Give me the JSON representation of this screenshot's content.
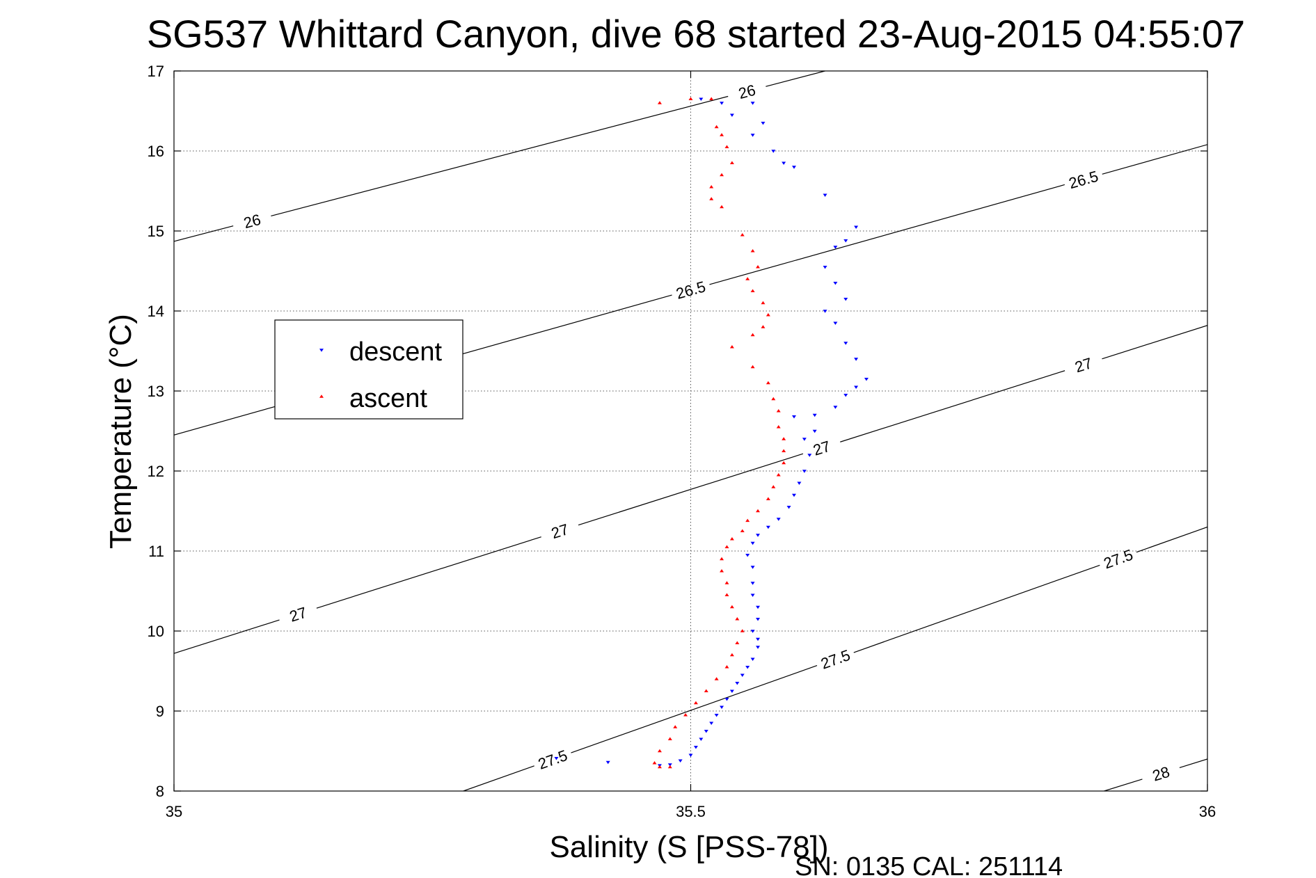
{
  "chart_data": {
    "type": "scatter",
    "title": "SG537 Whittard Canyon, dive 68 started 23-Aug-2015 04:55:07",
    "xlabel": "Salinity (S [PSS-78])",
    "ylabel": "Temperature (°C)",
    "footer": "SN: 0135  CAL: 251114",
    "xlim": [
      35,
      36
    ],
    "ylim": [
      8,
      17
    ],
    "x_ticks": [
      "35",
      "35.5",
      "36"
    ],
    "y_ticks": [
      "8",
      "9",
      "10",
      "11",
      "12",
      "13",
      "14",
      "15",
      "16",
      "17"
    ],
    "grid": true,
    "legend_position": "middle-left",
    "legend": [
      {
        "label": "descent",
        "color": "#0000ff",
        "marker": "triangle-down"
      },
      {
        "label": "ascent",
        "color": "#ff0000",
        "marker": "triangle-up"
      }
    ],
    "density_contours": [
      {
        "level": 26,
        "labels": [
          "26",
          "26"
        ],
        "points": [
          [
            35.0,
            14.87
          ],
          [
            35.63,
            17.0
          ]
        ]
      },
      {
        "level": 26.5,
        "labels": [
          "26.5",
          "26.5",
          "26.5"
        ],
        "points": [
          [
            35.0,
            12.45
          ],
          [
            36.0,
            16.08
          ]
        ]
      },
      {
        "level": 27,
        "labels": [
          "27",
          "27",
          "27",
          "27"
        ],
        "points": [
          [
            35.0,
            9.72
          ],
          [
            36.0,
            13.82
          ]
        ]
      },
      {
        "level": 27.5,
        "labels": [
          "27.5",
          "27.5",
          "27.5"
        ],
        "points": [
          [
            35.28,
            8.0
          ],
          [
            36.0,
            11.3
          ]
        ]
      },
      {
        "level": 28,
        "labels": [
          "28"
        ],
        "points": [
          [
            35.9,
            8.0
          ],
          [
            36.0,
            8.4
          ]
        ]
      }
    ],
    "series": [
      {
        "name": "descent",
        "color": "#0000ff",
        "marker": "triangle-down",
        "points": [
          [
            35.51,
            16.65
          ],
          [
            35.53,
            16.6
          ],
          [
            35.56,
            16.6
          ],
          [
            35.54,
            16.45
          ],
          [
            35.57,
            16.35
          ],
          [
            35.56,
            16.2
          ],
          [
            35.58,
            16.0
          ],
          [
            35.59,
            15.85
          ],
          [
            35.6,
            15.8
          ],
          [
            35.63,
            15.45
          ],
          [
            35.66,
            15.05
          ],
          [
            35.65,
            14.88
          ],
          [
            35.64,
            14.8
          ],
          [
            35.63,
            14.55
          ],
          [
            35.64,
            14.35
          ],
          [
            35.65,
            14.15
          ],
          [
            35.63,
            14.0
          ],
          [
            35.64,
            13.85
          ],
          [
            35.65,
            13.6
          ],
          [
            35.66,
            13.4
          ],
          [
            35.67,
            13.15
          ],
          [
            35.66,
            13.05
          ],
          [
            35.65,
            12.95
          ],
          [
            35.64,
            12.8
          ],
          [
            35.62,
            12.7
          ],
          [
            35.6,
            12.68
          ],
          [
            35.62,
            12.5
          ],
          [
            35.61,
            12.4
          ],
          [
            35.615,
            12.2
          ],
          [
            35.61,
            12.0
          ],
          [
            35.605,
            11.85
          ],
          [
            35.6,
            11.7
          ],
          [
            35.595,
            11.55
          ],
          [
            35.585,
            11.4
          ],
          [
            35.575,
            11.3
          ],
          [
            35.565,
            11.2
          ],
          [
            35.56,
            11.1
          ],
          [
            35.555,
            10.95
          ],
          [
            35.56,
            10.8
          ],
          [
            35.56,
            10.6
          ],
          [
            35.56,
            10.45
          ],
          [
            35.565,
            10.3
          ],
          [
            35.565,
            10.15
          ],
          [
            35.56,
            10.0
          ],
          [
            35.565,
            9.9
          ],
          [
            35.565,
            9.8
          ],
          [
            35.56,
            9.65
          ],
          [
            35.555,
            9.55
          ],
          [
            35.55,
            9.45
          ],
          [
            35.545,
            9.35
          ],
          [
            35.54,
            9.25
          ],
          [
            35.535,
            9.15
          ],
          [
            35.53,
            9.05
          ],
          [
            35.525,
            8.95
          ],
          [
            35.52,
            8.85
          ],
          [
            35.515,
            8.75
          ],
          [
            35.51,
            8.65
          ],
          [
            35.505,
            8.55
          ],
          [
            35.5,
            8.45
          ],
          [
            35.49,
            8.38
          ],
          [
            35.48,
            8.33
          ],
          [
            35.47,
            8.32
          ],
          [
            35.42,
            8.36
          ],
          [
            35.37,
            8.41
          ]
        ]
      },
      {
        "name": "ascent",
        "color": "#ff0000",
        "marker": "triangle-up",
        "points": [
          [
            35.47,
            16.6
          ],
          [
            35.5,
            16.65
          ],
          [
            35.52,
            16.65
          ],
          [
            35.525,
            16.3
          ],
          [
            35.53,
            16.2
          ],
          [
            35.535,
            16.05
          ],
          [
            35.54,
            15.85
          ],
          [
            35.53,
            15.7
          ],
          [
            35.52,
            15.55
          ],
          [
            35.52,
            15.4
          ],
          [
            35.53,
            15.3
          ],
          [
            35.55,
            14.95
          ],
          [
            35.56,
            14.75
          ],
          [
            35.565,
            14.55
          ],
          [
            35.555,
            14.4
          ],
          [
            35.56,
            14.25
          ],
          [
            35.57,
            14.1
          ],
          [
            35.575,
            13.95
          ],
          [
            35.57,
            13.8
          ],
          [
            35.56,
            13.7
          ],
          [
            35.54,
            13.55
          ],
          [
            35.56,
            13.3
          ],
          [
            35.575,
            13.1
          ],
          [
            35.58,
            12.9
          ],
          [
            35.585,
            12.75
          ],
          [
            35.585,
            12.55
          ],
          [
            35.59,
            12.4
          ],
          [
            35.59,
            12.25
          ],
          [
            35.59,
            12.1
          ],
          [
            35.585,
            11.95
          ],
          [
            35.58,
            11.8
          ],
          [
            35.575,
            11.65
          ],
          [
            35.565,
            11.5
          ],
          [
            35.555,
            11.38
          ],
          [
            35.55,
            11.25
          ],
          [
            35.54,
            11.15
          ],
          [
            35.535,
            11.05
          ],
          [
            35.53,
            10.9
          ],
          [
            35.53,
            10.75
          ],
          [
            35.535,
            10.6
          ],
          [
            35.535,
            10.45
          ],
          [
            35.54,
            10.3
          ],
          [
            35.545,
            10.15
          ],
          [
            35.55,
            10.0
          ],
          [
            35.545,
            9.85
          ],
          [
            35.54,
            9.7
          ],
          [
            35.535,
            9.55
          ],
          [
            35.525,
            9.4
          ],
          [
            35.515,
            9.25
          ],
          [
            35.505,
            9.1
          ],
          [
            35.495,
            8.95
          ],
          [
            35.485,
            8.8
          ],
          [
            35.48,
            8.65
          ],
          [
            35.47,
            8.5
          ],
          [
            35.465,
            8.35
          ],
          [
            35.47,
            8.3
          ],
          [
            35.48,
            8.3
          ]
        ]
      }
    ]
  }
}
